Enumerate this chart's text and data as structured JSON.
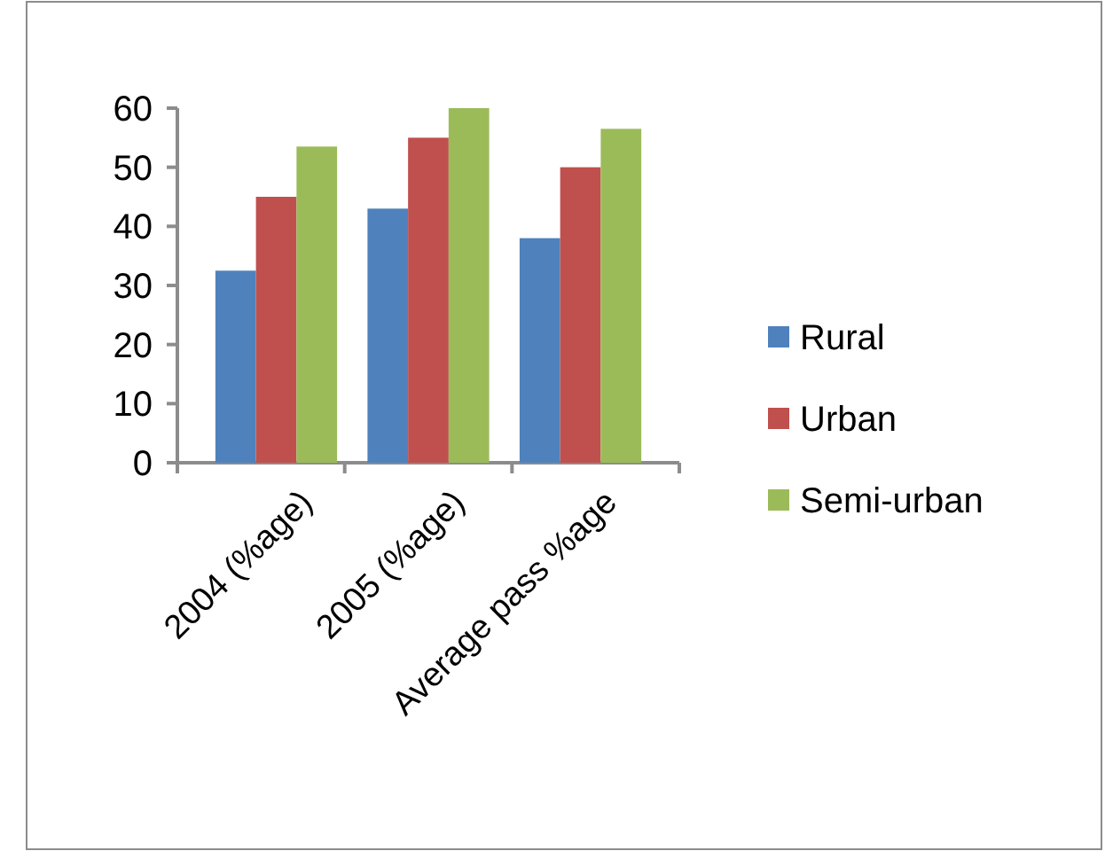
{
  "chart_data": {
    "type": "bar",
    "categories": [
      "2004 (%age)",
      "2005 (%age)",
      "Average pass %age"
    ],
    "series": [
      {
        "name": "Rural",
        "color": "#4f81bd",
        "values": [
          32.5,
          43,
          38
        ]
      },
      {
        "name": "Urban",
        "color": "#c0504d",
        "values": [
          45,
          55,
          50
        ]
      },
      {
        "name": "Semi-urban",
        "color": "#9bbb59",
        "values": [
          53.5,
          60,
          56.5
        ]
      }
    ],
    "ylim": [
      0,
      60
    ],
    "yticks": [
      0,
      10,
      20,
      30,
      40,
      50,
      60
    ],
    "grid": false,
    "legend": "right"
  }
}
